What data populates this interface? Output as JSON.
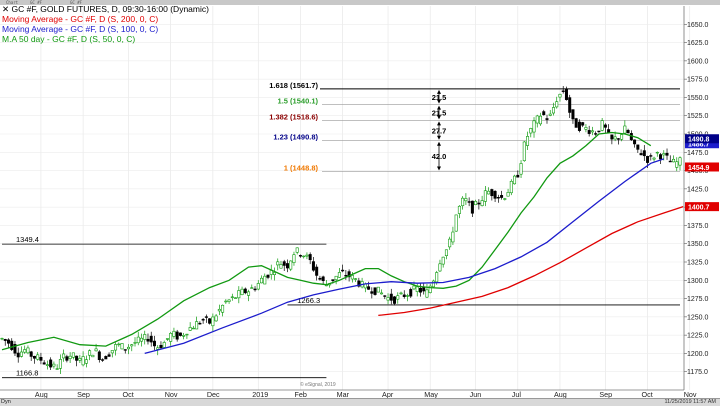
{
  "toolbar": {
    "chart_label": "Chart",
    "symbol": "GC #F",
    "ticker": "GC #F"
  },
  "legend": [
    {
      "text": "GC #F, GOLD FUTURES, D, 09:30-16:00 (Dynamic)",
      "color": "#000000"
    },
    {
      "text": "Moving Average - GC #F, D (S, 200, 0, C)",
      "color": "#e00000"
    },
    {
      "text": "Moving Average - GC #F, D (S, 100, 0, C)",
      "color": "#1c1ccc"
    },
    {
      "text": "M.A 50 day - GC #F, D (S, 50, 0, C)",
      "color": "#119911"
    }
  ],
  "footer": {
    "mode": "Dyn",
    "copyright": "© eSignal, 2019",
    "timestamp": "11/25/2019 11:57 AM"
  },
  "chart_data": {
    "type": "candlestick",
    "title": "GC #F, GOLD FUTURES, D, 09:30-16:00 (Dynamic)",
    "y_axis": {
      "position": "right",
      "range": [
        1150,
        1675
      ],
      "ticks": [
        "1650.0",
        "1625.0",
        "1600.0",
        "1575.0",
        "1550.0",
        "1525.0",
        "1500.0",
        "1475.0",
        "1450.0",
        "1425.0",
        "1400.0",
        "1375.0",
        "1350.0",
        "1325.0",
        "1300.0",
        "1275.0",
        "1250.0",
        "1225.0",
        "1200.0",
        "1175.0"
      ]
    },
    "x_axis": {
      "labels": [
        "Aug",
        "Sep",
        "Oct",
        "Nov",
        "Dec",
        "2019",
        "Feb",
        "Mar",
        "Apr",
        "May",
        "Jun",
        "Jul",
        "Aug",
        "Sep",
        "Oct",
        "Nov"
      ]
    },
    "price_path": [
      1220,
      1214,
      1200,
      1205,
      1196,
      1192,
      1185,
      1180,
      1195,
      1198,
      1188,
      1196,
      1205,
      1192,
      1202,
      1212,
      1207,
      1214,
      1218,
      1222,
      1208,
      1214,
      1227,
      1222,
      1232,
      1239,
      1246,
      1242,
      1256,
      1270,
      1275,
      1283,
      1286,
      1292,
      1305,
      1312,
      1325,
      1320,
      1340,
      1337,
      1326,
      1304,
      1294,
      1302,
      1310,
      1306,
      1300,
      1290,
      1288,
      1284,
      1276,
      1274,
      1279,
      1284,
      1289,
      1280,
      1302,
      1332,
      1346,
      1392,
      1412,
      1397,
      1408,
      1422,
      1418,
      1412,
      1428,
      1447,
      1494,
      1512,
      1528,
      1520,
      1548,
      1562,
      1516,
      1510,
      1507,
      1502,
      1514,
      1490,
      1496,
      1508,
      1482,
      1474,
      1464,
      1474,
      1469,
      1460,
      1462
    ],
    "series": [
      {
        "name": "M.A 50 day",
        "color": "#119911",
        "current": 1486.7,
        "points": [
          [
            0,
            1205
          ],
          [
            8,
            1215
          ],
          [
            16,
            1222
          ],
          [
            24,
            1212
          ],
          [
            32,
            1210
          ],
          [
            40,
            1226
          ],
          [
            48,
            1247
          ],
          [
            56,
            1272
          ],
          [
            64,
            1290
          ],
          [
            70,
            1300
          ],
          [
            76,
            1318
          ],
          [
            80,
            1320
          ],
          [
            84,
            1312
          ],
          [
            88,
            1304
          ],
          [
            92,
            1300
          ],
          [
            96,
            1296
          ],
          [
            100,
            1294
          ],
          [
            104,
            1300
          ],
          [
            108,
            1308
          ],
          [
            112,
            1316
          ],
          [
            116,
            1316
          ],
          [
            120,
            1306
          ],
          [
            124,
            1298
          ],
          [
            128,
            1292
          ],
          [
            132,
            1290
          ],
          [
            136,
            1289
          ],
          [
            140,
            1292
          ],
          [
            144,
            1300
          ],
          [
            148,
            1318
          ],
          [
            152,
            1342
          ],
          [
            156,
            1366
          ],
          [
            160,
            1392
          ],
          [
            164,
            1414
          ],
          [
            168,
            1440
          ],
          [
            172,
            1460
          ],
          [
            176,
            1470
          ],
          [
            180,
            1484
          ],
          [
            184,
            1500
          ],
          [
            188,
            1502
          ],
          [
            192,
            1500
          ],
          [
            196,
            1495
          ],
          [
            200,
            1484
          ]
        ]
      },
      {
        "name": "Moving Average (S, 100)",
        "color": "#1c1ccc",
        "current": 1486.7,
        "points": [
          [
            44,
            1200
          ],
          [
            56,
            1214
          ],
          [
            68,
            1235
          ],
          [
            80,
            1255
          ],
          [
            88,
            1270
          ],
          [
            96,
            1280
          ],
          [
            104,
            1288
          ],
          [
            112,
            1295
          ],
          [
            120,
            1298
          ],
          [
            128,
            1296
          ],
          [
            136,
            1297
          ],
          [
            144,
            1304
          ],
          [
            152,
            1316
          ],
          [
            160,
            1332
          ],
          [
            168,
            1352
          ],
          [
            176,
            1380
          ],
          [
            184,
            1408
          ],
          [
            192,
            1435
          ],
          [
            200,
            1460
          ],
          [
            204,
            1466
          ]
        ]
      },
      {
        "name": "Moving Average (S, 200)",
        "color": "#e00000",
        "current": 1400.7,
        "points": [
          [
            116,
            1252
          ],
          [
            124,
            1256
          ],
          [
            132,
            1262
          ],
          [
            140,
            1270
          ],
          [
            148,
            1278
          ],
          [
            156,
            1290
          ],
          [
            164,
            1306
          ],
          [
            172,
            1324
          ],
          [
            180,
            1344
          ],
          [
            188,
            1364
          ],
          [
            196,
            1380
          ],
          [
            204,
            1392
          ],
          [
            210,
            1400.7
          ]
        ]
      }
    ],
    "fibonacci": [
      {
        "ratio": "1.618",
        "label": "1.618 (1561.7)",
        "value": 1561.7,
        "color": "#000000"
      },
      {
        "ratio": "1.5",
        "label": "1.5 (1540.1)",
        "value": 1540.1,
        "color": "#2a9d2a"
      },
      {
        "ratio": "1.382",
        "label": "1.382 (1518.6)",
        "value": 1518.6,
        "color": "#8b0000"
      },
      {
        "ratio": "1.23",
        "label": "1.23 (1490.8)",
        "value": 1490.8,
        "color": "#000088"
      },
      {
        "ratio": "1",
        "label": "1 (1448.8)",
        "value": 1448.8,
        "color": "#f07800"
      }
    ],
    "fib_spacings": [
      "21.5",
      "21.5",
      "27.7",
      "42.0"
    ],
    "levels": [
      {
        "label": "1349.4",
        "value": 1349.4
      },
      {
        "label": "1266.3",
        "value": 1266.3
      },
      {
        "label": "1166.8",
        "value": 1166.8
      }
    ],
    "price_tags": [
      {
        "label": "1486.7",
        "value": 1486.7,
        "color": "#1c1ccc"
      },
      {
        "label": "1490.8",
        "value": 1493.5,
        "color": "#000088"
      },
      {
        "label": "1454.9",
        "value": 1454.9,
        "color": "#e00000"
      },
      {
        "label": "1400.7",
        "value": 1400.7,
        "color": "#e00000"
      }
    ]
  }
}
